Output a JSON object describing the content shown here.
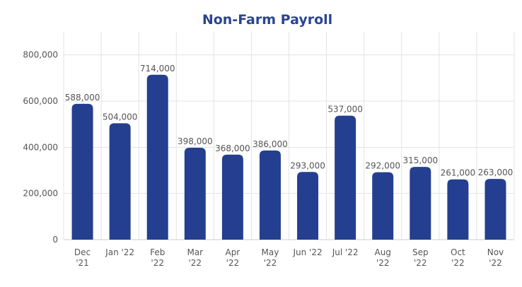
{
  "chart_data": {
    "type": "bar",
    "title": "Non-Farm Payroll",
    "xlabel": "",
    "ylabel": "",
    "categories": [
      [
        "Dec",
        "'21"
      ],
      [
        "Jan '22"
      ],
      [
        "Feb",
        "'22"
      ],
      [
        "Mar",
        "'22"
      ],
      [
        "Apr",
        "'22"
      ],
      [
        "May",
        "'22"
      ],
      [
        "Jun '22"
      ],
      [
        "Jul '22"
      ],
      [
        "Aug",
        "'22"
      ],
      [
        "Sep",
        "'22"
      ],
      [
        "Oct",
        "'22"
      ],
      [
        "Nov",
        "'22"
      ]
    ],
    "values": [
      588000,
      504000,
      714000,
      398000,
      368000,
      386000,
      293000,
      537000,
      292000,
      315000,
      261000,
      263000
    ],
    "data_labels": [
      "588,000",
      "504,000",
      "714,000",
      "398,000",
      "368,000",
      "386,000",
      "293,000",
      "537,000",
      "292,000",
      "315,000",
      "261,000",
      "263,000"
    ],
    "ylim": [
      0,
      900000
    ],
    "yticks": [
      0,
      200000,
      400000,
      600000,
      800000
    ],
    "ytick_labels": [
      "0",
      "200,000",
      "400,000",
      "600,000",
      "800,000"
    ],
    "grid": true,
    "legend": "none",
    "colors": {
      "bar": "#243f8f",
      "title": "#2b4590"
    }
  }
}
